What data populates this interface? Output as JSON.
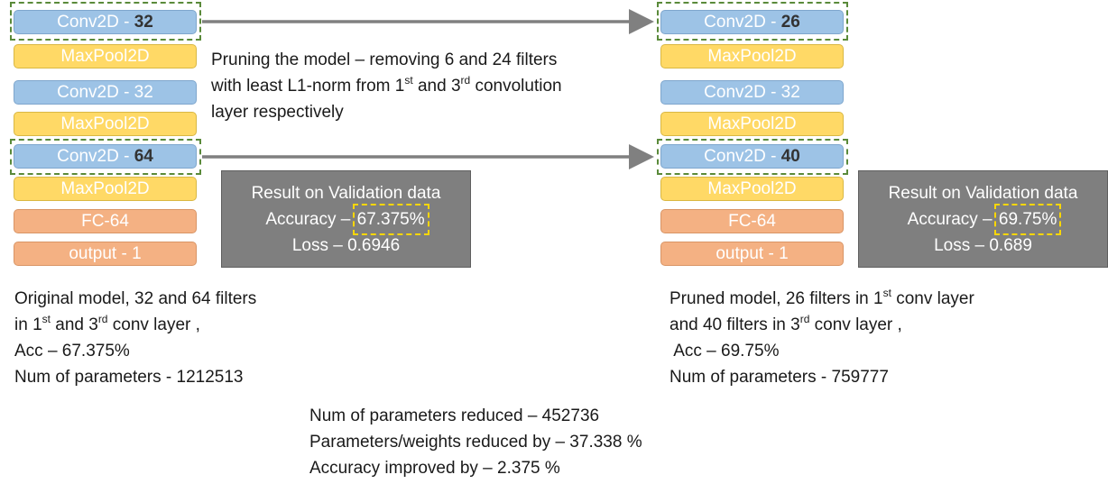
{
  "original": {
    "layers": [
      "Conv2D - ",
      "32",
      "MaxPool2D",
      "Conv2D - 32",
      "MaxPool2D",
      "Conv2D - ",
      "64",
      "MaxPool2D",
      "FC-64",
      "output - 1"
    ],
    "result": {
      "title": "Result on Validation data",
      "acc_prefix": "Accuracy – ",
      "acc_value": "67.375%",
      "loss": "Loss – 0.6946"
    },
    "caption": {
      "line1": "Original model, 32 and 64 filters",
      "line2a": "in 1",
      "sup1": "st",
      "line2b": " and 3",
      "sup2": "rd",
      "line2c": " conv layer ,",
      "line3": "Acc – 67.375%",
      "line4": "Num of parameters - 1212513"
    }
  },
  "pruned": {
    "layers": [
      "Conv2D - ",
      "26",
      "MaxPool2D",
      "Conv2D - 32",
      "MaxPool2D",
      "Conv2D - ",
      "40",
      "MaxPool2D",
      "FC-64",
      "output - 1"
    ],
    "result": {
      "title": "Result on Validation data",
      "acc_prefix": "Accuracy – ",
      "acc_value": "69.75%",
      "loss": "Loss – 0.689"
    },
    "caption": {
      "line1a": "Pruned model, 26 filters in 1",
      "sup1": "st",
      "line1b": " conv layer",
      "line2a": "and 40 filters in 3",
      "sup2": "rd",
      "line2b": " conv layer ,",
      "line3": " Acc – 69.75%",
      "line4": "Num of parameters - 759777"
    }
  },
  "pruning_note": {
    "line1": "Pruning the model – removing 6 and 24 filters",
    "line2a": "with least L1-norm from 1",
    "sup1": "st",
    "line2b": " and 3",
    "sup2": "rd",
    "line2c": " convolution",
    "line3": "layer respectively"
  },
  "summary": {
    "line1": "Num of parameters reduced – 452736",
    "line2": "Parameters/weights reduced by – 37.338 %",
    "line3": "Accuracy improved by – 2.375 %"
  },
  "colors": {
    "conv": "#9dc3e6",
    "pool": "#ffd966",
    "fc": "#f4b183",
    "result_box": "#7f7f7f",
    "arrow": "#808080",
    "highlight_green": "#5a8a3a",
    "highlight_yellow": "#ffd700"
  }
}
